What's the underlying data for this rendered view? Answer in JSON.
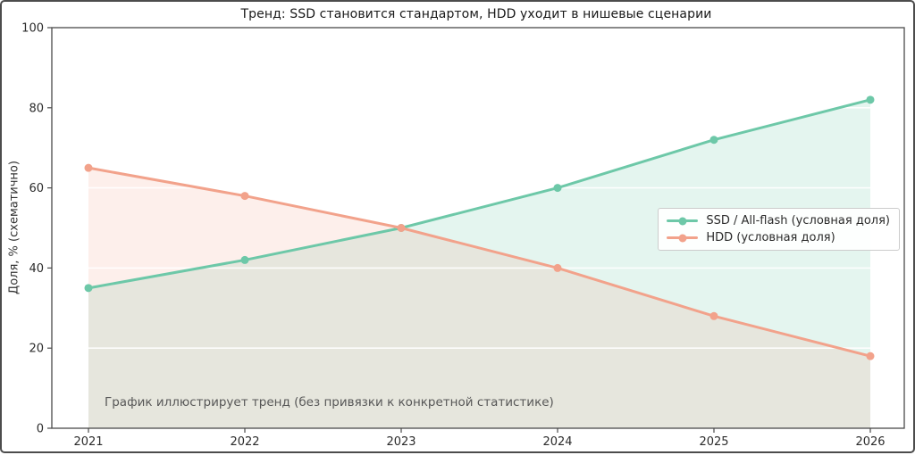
{
  "figure": {
    "title": "Тренд: SSD становится стандартом, HDD уходит в нишевые сценарии",
    "y_axis_label": "Доля, % (схематично)",
    "annotation": "График иллюстрирует тренд (без привязки к конкретной статистике)"
  },
  "chart_data": {
    "type": "line",
    "title": "Тренд: SSD становится стандартом, HDD уходит в нишевые сценарии",
    "xlabel": "",
    "ylabel": "Доля, % (схематично)",
    "x": [
      "2021",
      "2022",
      "2023",
      "2024",
      "2025",
      "2026"
    ],
    "series": [
      {
        "name": "SSD / All-flash (условная доля)",
        "values": [
          35,
          42,
          50,
          60,
          72,
          82
        ],
        "color": "#6dc8a8",
        "fill_opacity": 0.19,
        "marker": "circle"
      },
      {
        "name": "HDD (условная доля)",
        "values": [
          65,
          58,
          50,
          40,
          28,
          18
        ],
        "color": "#f2a28b",
        "fill_opacity": 0.17,
        "marker": "circle"
      }
    ],
    "ylim": [
      0,
      100
    ],
    "yticks": [
      0,
      20,
      40,
      60,
      80,
      100
    ],
    "grid": "horizontal gridlines, white, drawn over area fills",
    "area_fill": true,
    "legend_position": "center-right",
    "annotation": "График иллюстрирует тренд (без привязки к конкретной статистике)",
    "axis_color": "#4a4a4a",
    "tick_label_color": "#2b2b2b"
  }
}
